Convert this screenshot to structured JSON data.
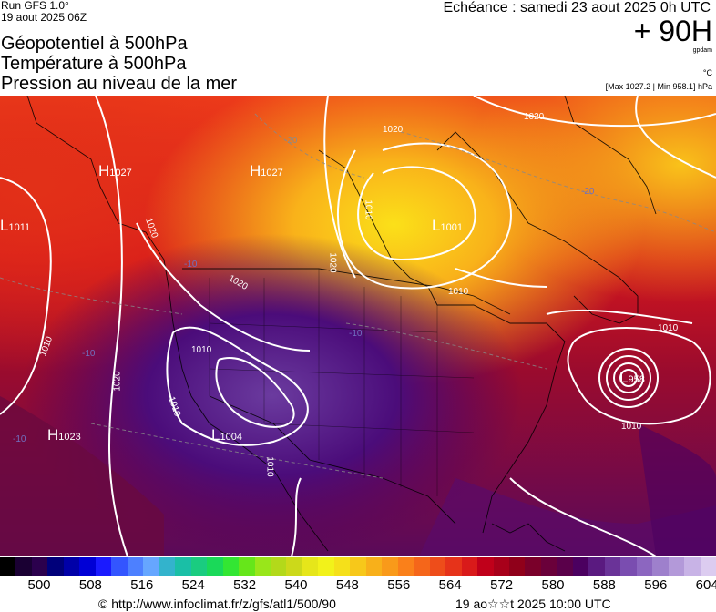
{
  "header": {
    "run": "Run GFS 1.0°",
    "run_date": "19 aout 2025 06Z",
    "echeance": "Echéance : samedi 23 aout 2025 0h UTC",
    "lead_time": "+ 90H",
    "unit_gpdam": "gpdam",
    "unit_celsius": "°C",
    "max_min": "[Max 1027.2 | Min 958.1] hPa"
  },
  "titles": {
    "line1": "Géopotentiel à 500hPa",
    "line2": "Température à 500hPa",
    "line3": "Pression au niveau de la mer"
  },
  "pressure_centers": [
    {
      "type": "H",
      "value": "1027"
    },
    {
      "type": "H",
      "value": "1027"
    },
    {
      "type": "L",
      "value": "1011"
    },
    {
      "type": "L",
      "value": "1001"
    },
    {
      "type": "H",
      "value": "1023"
    },
    {
      "type": "L",
      "value": "1004"
    },
    {
      "type": "L",
      "value": "958"
    }
  ],
  "isobar_labels": [
    "1020",
    "1020",
    "1020",
    "1020",
    "1010",
    "1010",
    "1020",
    "1010",
    "1010",
    "1010",
    "1010",
    "1020",
    "1010",
    "1010"
  ],
  "temp_labels": [
    "-20",
    "-20",
    "-10",
    "-10",
    "-10",
    "-10"
  ],
  "colorbar": {
    "ticks": [
      "500",
      "508",
      "516",
      "524",
      "532",
      "540",
      "548",
      "556",
      "564",
      "572",
      "580",
      "588",
      "596",
      "604"
    ],
    "colors": [
      "#000000",
      "#1a0033",
      "#2b004d",
      "#00007a",
      "#0000a8",
      "#0000d6",
      "#1a1aff",
      "#3355ff",
      "#4d80ff",
      "#66a6ff",
      "#33b3cc",
      "#1abfa6",
      "#1acc80",
      "#1ad959",
      "#33e633",
      "#66e61a",
      "#99e61a",
      "#b3d91a",
      "#ccd91a",
      "#e6e61a",
      "#f2f21a",
      "#f5e01a",
      "#f7c81a",
      "#f8b01a",
      "#f99a1a",
      "#fa801a",
      "#f5661a",
      "#ee4d1a",
      "#e6331a",
      "#d91a1a",
      "#c0001a",
      "#a8001a",
      "#90001a",
      "#7a002a",
      "#6a003a",
      "#5a004a",
      "#4b0060",
      "#5a1a80",
      "#6a3398",
      "#7a4db0",
      "#8c66c0",
      "#9e80cc",
      "#b399d9",
      "#c8b3e6",
      "#dcccf0"
    ]
  },
  "footer": {
    "source": "© http://www.infoclimat.fr/z/gfs/atl1/500/90",
    "timestamp": "19 ao☆☆t 2025 10:00 UTC"
  }
}
